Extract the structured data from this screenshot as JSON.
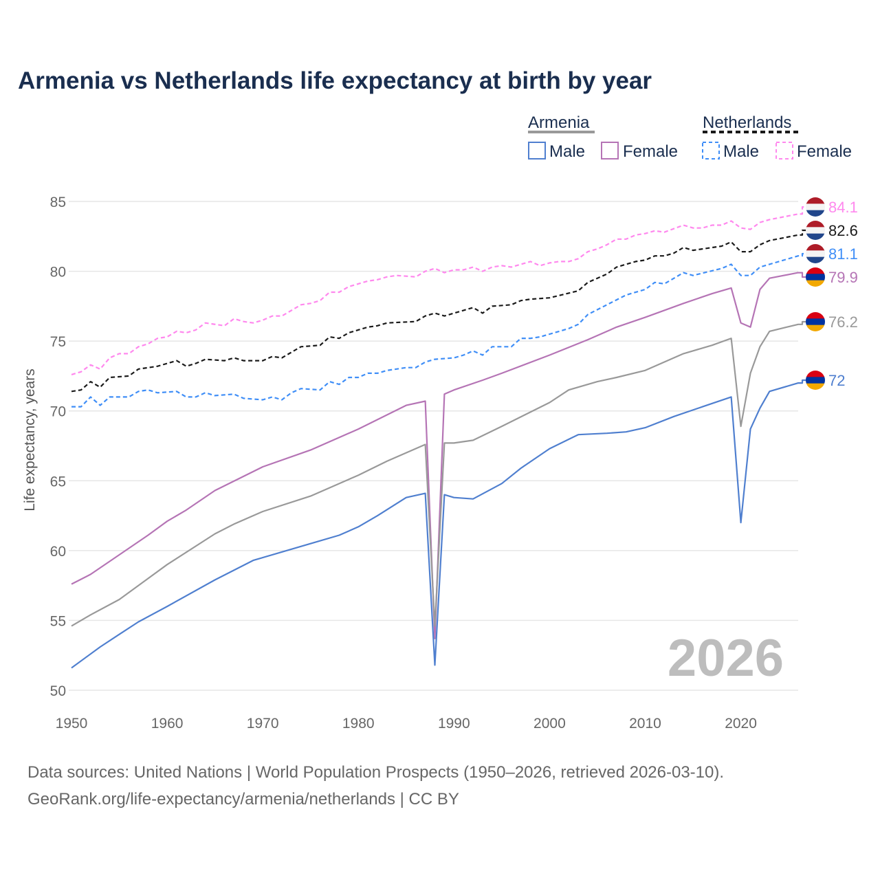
{
  "chart_data": {
    "type": "line",
    "title": "Armenia vs Netherlands life expectancy at birth by year",
    "xlabel": "",
    "ylabel": "Life expectancy, years",
    "xlim": [
      1950,
      2026
    ],
    "ylim": [
      50,
      85
    ],
    "x_ticks": [
      "1950",
      "1960",
      "1970",
      "1980",
      "1990",
      "2000",
      "2010",
      "2020"
    ],
    "y_ticks": [
      "50",
      "55",
      "60",
      "65",
      "70",
      "75",
      "80",
      "85"
    ],
    "grid": true,
    "watermark_year": "2026",
    "legend": {
      "placement": "top-right",
      "groups": [
        {
          "country": "Armenia",
          "style": "solid",
          "color": "#999999",
          "items": [
            {
              "label": "Male",
              "color": "#4f7fcf"
            },
            {
              "label": "Female",
              "color": "#b574b5"
            }
          ]
        },
        {
          "country": "Netherlands",
          "style": "dashed",
          "color": "#1a1a1a",
          "items": [
            {
              "label": "Male",
              "color": "#3f8ef7"
            },
            {
              "label": "Female",
              "color": "#ff88ee"
            }
          ]
        }
      ]
    },
    "series": [
      {
        "name": "Netherlands Female",
        "country": "Netherlands",
        "dashed": true,
        "color": "#ff88ee",
        "end_label": "84.1",
        "x": [
          1950,
          1951,
          1952,
          1953,
          1954,
          1955,
          1956,
          1957,
          1958,
          1959,
          1960,
          1961,
          1962,
          1963,
          1964,
          1966,
          1967,
          1968,
          1969,
          1970,
          1971,
          1972,
          1973,
          1974,
          1975,
          1976,
          1977,
          1978,
          1979,
          1981,
          1982,
          1983,
          1984,
          1986,
          1987,
          1988,
          1989,
          1990,
          1991,
          1992,
          1993,
          1994,
          1995,
          1996,
          1998,
          1999,
          2000,
          2001,
          2002,
          2003,
          2004,
          2005,
          2006,
          2007,
          2008,
          2009,
          2010,
          2011,
          2012,
          2014,
          2015,
          2016,
          2017,
          2018,
          2019,
          2020,
          2021,
          2022,
          2023,
          2026
        ],
        "y": [
          72.6,
          72.8,
          73.3,
          73.0,
          73.8,
          74.1,
          74.1,
          74.6,
          74.8,
          75.2,
          75.3,
          75.7,
          75.6,
          75.8,
          76.3,
          76.1,
          76.6,
          76.4,
          76.3,
          76.5,
          76.8,
          76.8,
          77.2,
          77.6,
          77.7,
          77.9,
          78.5,
          78.5,
          78.9,
          79.3,
          79.4,
          79.6,
          79.7,
          79.6,
          80.0,
          80.2,
          79.9,
          80.1,
          80.1,
          80.3,
          80.0,
          80.3,
          80.4,
          80.3,
          80.7,
          80.4,
          80.6,
          80.7,
          80.7,
          80.9,
          81.4,
          81.6,
          81.9,
          82.3,
          82.3,
          82.6,
          82.7,
          82.9,
          82.8,
          83.3,
          83.1,
          83.1,
          83.3,
          83.3,
          83.6,
          83.1,
          83.0,
          83.5,
          83.7,
          84.1
        ]
      },
      {
        "name": "Netherlands",
        "country": "Netherlands",
        "dashed": true,
        "color": "#1a1a1a",
        "end_label": "82.6",
        "x": [
          1950,
          1951,
          1952,
          1953,
          1954,
          1956,
          1957,
          1959,
          1961,
          1962,
          1963,
          1964,
          1966,
          1967,
          1968,
          1970,
          1971,
          1972,
          1974,
          1976,
          1977,
          1978,
          1979,
          1981,
          1982,
          1983,
          1986,
          1987,
          1988,
          1989,
          1992,
          1993,
          1994,
          1996,
          1997,
          1998,
          2000,
          2003,
          2004,
          2006,
          2007,
          2009,
          2010,
          2011,
          2012,
          2013,
          2014,
          2015,
          2018,
          2019,
          2020,
          2021,
          2022,
          2023,
          2026
        ],
        "y": [
          71.4,
          71.5,
          72.1,
          71.7,
          72.4,
          72.5,
          73.0,
          73.2,
          73.6,
          73.2,
          73.4,
          73.7,
          73.6,
          73.8,
          73.6,
          73.6,
          73.9,
          73.8,
          74.6,
          74.7,
          75.3,
          75.2,
          75.6,
          76.0,
          76.1,
          76.3,
          76.4,
          76.8,
          77.0,
          76.8,
          77.4,
          77.0,
          77.5,
          77.6,
          77.9,
          78.0,
          78.1,
          78.6,
          79.2,
          79.8,
          80.3,
          80.7,
          80.8,
          81.1,
          81.1,
          81.3,
          81.7,
          81.5,
          81.8,
          82.1,
          81.4,
          81.4,
          81.9,
          82.2,
          82.6
        ]
      },
      {
        "name": "Netherlands Male",
        "country": "Netherlands",
        "dashed": true,
        "color": "#3f8ef7",
        "end_label": "81.1",
        "x": [
          1950,
          1951,
          1952,
          1953,
          1954,
          1956,
          1957,
          1958,
          1959,
          1961,
          1962,
          1963,
          1964,
          1965,
          1967,
          1968,
          1970,
          1971,
          1972,
          1973,
          1974,
          1976,
          1977,
          1978,
          1979,
          1980,
          1981,
          1982,
          1983,
          1985,
          1986,
          1987,
          1988,
          1990,
          1991,
          1992,
          1993,
          1994,
          1996,
          1997,
          1998,
          1999,
          2000,
          2002,
          2003,
          2004,
          2006,
          2008,
          2010,
          2011,
          2012,
          2014,
          2015,
          2018,
          2019,
          2020,
          2021,
          2022,
          2026
        ],
        "y": [
          70.3,
          70.3,
          71.0,
          70.4,
          71.0,
          71.0,
          71.4,
          71.5,
          71.3,
          71.4,
          71.0,
          71.0,
          71.3,
          71.1,
          71.2,
          70.9,
          70.8,
          71.0,
          70.8,
          71.3,
          71.6,
          71.5,
          72.1,
          71.9,
          72.4,
          72.4,
          72.7,
          72.7,
          72.9,
          73.1,
          73.1,
          73.5,
          73.7,
          73.8,
          74.0,
          74.3,
          74.0,
          74.6,
          74.6,
          75.2,
          75.2,
          75.3,
          75.5,
          75.9,
          76.2,
          76.9,
          77.6,
          78.3,
          78.7,
          79.2,
          79.1,
          79.9,
          79.7,
          80.2,
          80.5,
          79.7,
          79.7,
          80.3,
          81.1
        ]
      },
      {
        "name": "Armenia Female",
        "country": "Armenia",
        "dashed": false,
        "color": "#b574b5",
        "end_label": "79.9",
        "x": [
          1950,
          1952,
          1955,
          1958,
          1960,
          1962,
          1965,
          1970,
          1975,
          1980,
          1985,
          1987,
          1988,
          1989,
          1990,
          1993,
          1995,
          2000,
          2004,
          2007,
          2010,
          2014,
          2017,
          2019,
          2020,
          2021,
          2022,
          2023,
          2026
        ],
        "y": [
          57.6,
          58.3,
          59.7,
          61.1,
          62.1,
          62.9,
          64.3,
          66.0,
          67.2,
          68.7,
          70.4,
          70.7,
          53.7,
          71.2,
          71.5,
          72.2,
          72.7,
          74.0,
          75.1,
          76.0,
          76.7,
          77.7,
          78.4,
          78.8,
          76.3,
          76.0,
          78.7,
          79.5,
          79.9
        ]
      },
      {
        "name": "Armenia",
        "country": "Armenia",
        "dashed": false,
        "color": "#999999",
        "end_label": "76.2",
        "x": [
          1950,
          1952,
          1955,
          1958,
          1960,
          1965,
          1967,
          1970,
          1975,
          1980,
          1983,
          1987,
          1988,
          1989,
          1990,
          1992,
          1995,
          2000,
          2002,
          2005,
          2007,
          2010,
          2014,
          2017,
          2019,
          2020,
          2021,
          2022,
          2023,
          2026
        ],
        "y": [
          54.6,
          55.4,
          56.5,
          58.0,
          59.0,
          61.2,
          61.9,
          62.8,
          63.9,
          65.4,
          66.4,
          67.6,
          54.6,
          67.7,
          67.7,
          67.9,
          68.9,
          70.6,
          71.5,
          72.1,
          72.4,
          72.9,
          74.1,
          74.7,
          75.2,
          68.9,
          72.7,
          74.6,
          75.7,
          76.2
        ]
      },
      {
        "name": "Armenia Male",
        "country": "Armenia",
        "dashed": false,
        "color": "#4f7fcf",
        "end_label": "72",
        "x": [
          1950,
          1953,
          1955,
          1957,
          1960,
          1965,
          1969,
          1975,
          1978,
          1980,
          1982,
          1985,
          1987,
          1988,
          1989,
          1990,
          1992,
          1995,
          1997,
          2000,
          2003,
          2006,
          2008,
          2010,
          2013,
          2016,
          2019,
          2020,
          2021,
          2022,
          2023,
          2026
        ],
        "y": [
          51.6,
          53.1,
          54.0,
          54.9,
          56.0,
          57.9,
          59.3,
          60.5,
          61.1,
          61.7,
          62.5,
          63.8,
          64.1,
          51.8,
          64.0,
          63.8,
          63.7,
          64.8,
          65.9,
          67.3,
          68.3,
          68.4,
          68.5,
          68.8,
          69.6,
          70.3,
          71.0,
          62.0,
          68.7,
          70.2,
          71.4,
          72.0
        ]
      }
    ],
    "footer": [
      "Data sources: United Nations | World Population Prospects (1950–2026, retrieved 2026-03-10).",
      "GeoRank.org/life-expectancy/armenia/netherlands | CC BY"
    ]
  }
}
